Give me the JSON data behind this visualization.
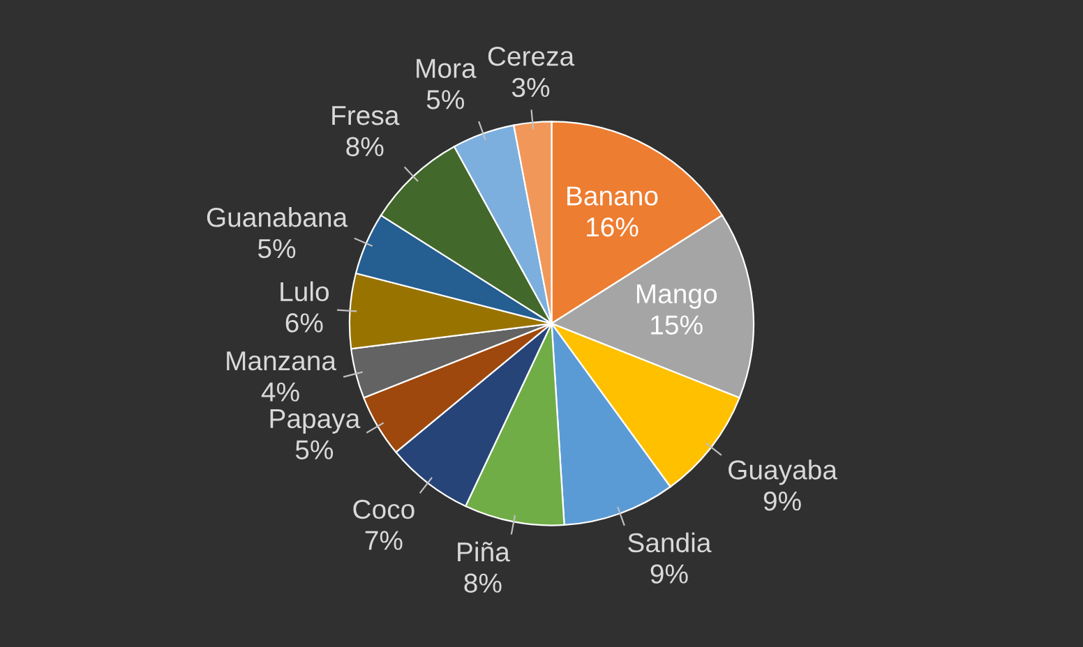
{
  "chart_data": {
    "type": "pie",
    "categories": [
      "Banano",
      "Mango",
      "Guayaba",
      "Sandia",
      "Piña",
      "Coco",
      "Papaya",
      "Manzana",
      "Lulo",
      "Guanabana",
      "Fresa",
      "Mora",
      "Cereza"
    ],
    "values": [
      16,
      15,
      9,
      9,
      8,
      7,
      5,
      4,
      6,
      5,
      8,
      5,
      3
    ],
    "colors": [
      "#ed7d31",
      "#a5a5a5",
      "#ffc000",
      "#5b9bd5",
      "#70ad47",
      "#264478",
      "#9e480e",
      "#636363",
      "#997300",
      "#255e91",
      "#43682b",
      "#7cafdd",
      "#f1975a"
    ],
    "value_labels": [
      "16%",
      "15%",
      "9%",
      "9%",
      "8%",
      "7%",
      "5%",
      "4%",
      "6%",
      "5%",
      "8%",
      "5%",
      "3%"
    ],
    "legend": false
  }
}
